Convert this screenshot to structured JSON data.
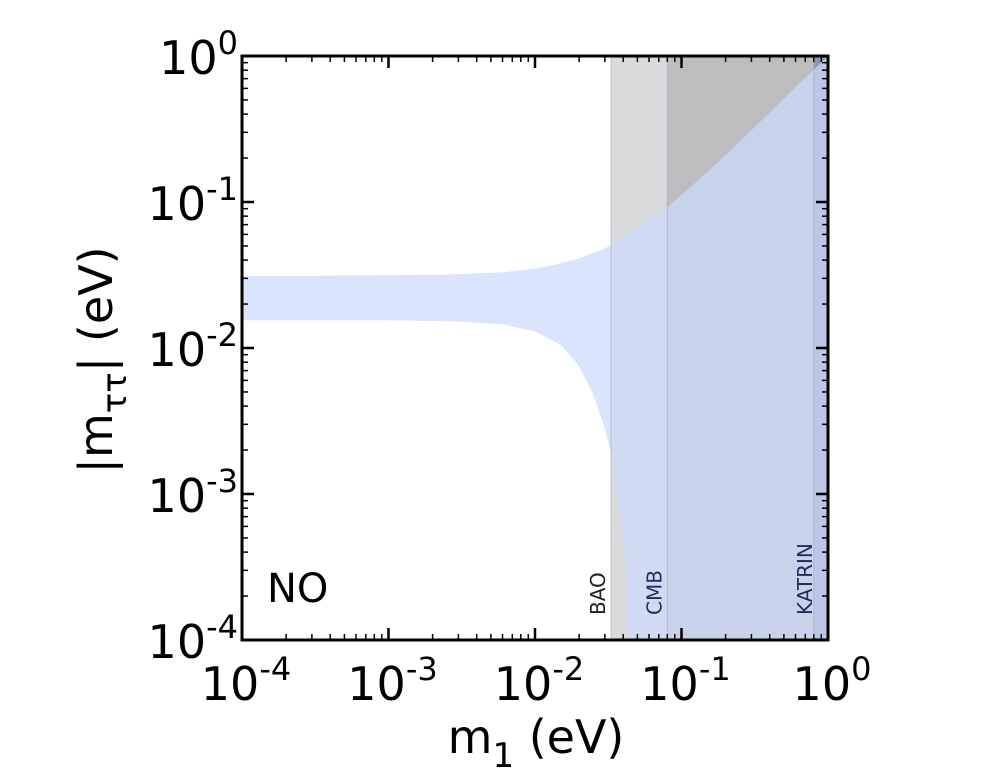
{
  "chart_data": {
    "type": "area",
    "title": "",
    "xlabel": "m",
    "xlabel_sub": "1",
    "xlabel_unit": " (eV)",
    "ylabel": "|m",
    "ylabel_sub": "ττ",
    "ylabel_unit": "| (eV)",
    "xscale": "log",
    "yscale": "log",
    "xlim": [
      0.0001,
      1
    ],
    "ylim": [
      0.0001,
      1
    ],
    "x_ticks": [
      {
        "value": 0.0001,
        "base": "10",
        "exp": "-4"
      },
      {
        "value": 0.001,
        "base": "10",
        "exp": "-3"
      },
      {
        "value": 0.01,
        "base": "10",
        "exp": "-2"
      },
      {
        "value": 0.1,
        "base": "10",
        "exp": "-1"
      },
      {
        "value": 1,
        "base": "10",
        "exp": "0"
      }
    ],
    "y_ticks": [
      {
        "value": 0.0001,
        "base": "10",
        "exp": "-4"
      },
      {
        "value": 0.001,
        "base": "10",
        "exp": "-3"
      },
      {
        "value": 0.01,
        "base": "10",
        "exp": "-2"
      },
      {
        "value": 0.1,
        "base": "10",
        "exp": "-1"
      },
      {
        "value": 1,
        "base": "10",
        "exp": "0"
      }
    ],
    "panel_label": "NO",
    "allowed_band": {
      "color": "#ccd9fc",
      "upper": [
        {
          "x": 0.0001,
          "y": 0.031
        },
        {
          "x": 0.001,
          "y": 0.0315
        },
        {
          "x": 0.003,
          "y": 0.032
        },
        {
          "x": 0.006,
          "y": 0.033
        },
        {
          "x": 0.01,
          "y": 0.035
        },
        {
          "x": 0.015,
          "y": 0.038
        },
        {
          "x": 0.02,
          "y": 0.041
        },
        {
          "x": 0.03,
          "y": 0.048
        },
        {
          "x": 0.05,
          "y": 0.066
        },
        {
          "x": 0.08,
          "y": 0.092
        },
        {
          "x": 0.15,
          "y": 0.16
        },
        {
          "x": 0.3,
          "y": 0.31
        },
        {
          "x": 0.6,
          "y": 0.61
        },
        {
          "x": 1,
          "y": 1
        }
      ],
      "lower": [
        {
          "x": 0.0001,
          "y": 0.0155
        },
        {
          "x": 0.001,
          "y": 0.0155
        },
        {
          "x": 0.003,
          "y": 0.0152
        },
        {
          "x": 0.006,
          "y": 0.0145
        },
        {
          "x": 0.01,
          "y": 0.013
        },
        {
          "x": 0.015,
          "y": 0.0105
        },
        {
          "x": 0.02,
          "y": 0.0075
        },
        {
          "x": 0.025,
          "y": 0.0048
        },
        {
          "x": 0.03,
          "y": 0.0028
        },
        {
          "x": 0.035,
          "y": 0.0015
        },
        {
          "x": 0.039,
          "y": 0.0007
        },
        {
          "x": 0.042,
          "y": 0.0003
        },
        {
          "x": 0.043,
          "y": 0.0001
        }
      ]
    },
    "exclusions": [
      {
        "name": "BAO",
        "x_min": 0.033,
        "x_max": 1,
        "color": "#d9dadc",
        "label_color": "#222222"
      },
      {
        "name": "CMB",
        "x_min": 0.08,
        "x_max": 1,
        "color": "#bdbdbf",
        "label_color": "#1f2d5a"
      },
      {
        "name": "KATRIN",
        "x_min": 0.8,
        "x_max": 1,
        "color": "#8f98ad",
        "label_color": "#1f2d5a"
      }
    ]
  }
}
